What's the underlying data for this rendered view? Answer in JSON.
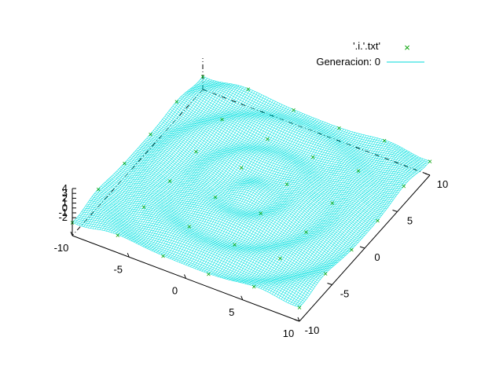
{
  "chart_data": {
    "type": "surface",
    "title": "",
    "xlabel": "",
    "ylabel": "",
    "zlabel": "",
    "x_range": [
      -10,
      10
    ],
    "y_range": [
      -10,
      10
    ],
    "z_range": [
      -2,
      4
    ],
    "x_ticks": [
      "-10",
      "-5",
      "0",
      "5",
      "10"
    ],
    "y_ticks": [
      "-10",
      "-5",
      "0",
      "5",
      "10"
    ],
    "z_ticks": [
      "4",
      "3",
      "2",
      "1",
      "0",
      "-1",
      "-2"
    ],
    "surface_function": "concentric ripples: z ≈ 0.3·cos(1.6·r), r = sqrt(x²+y²), amplitude ≈ 0.3 over z ∈ [-2, 4]",
    "mesh_color": "#00e0e0",
    "points_color": "#00a000",
    "legend": {
      "placement": "top-right",
      "entries": [
        {
          "label": "'.i.'.txt'",
          "marker": "×",
          "color": "#00a000"
        },
        {
          "label": "Generacion: 0",
          "marker": "line",
          "color": "#00d8d8"
        }
      ]
    }
  }
}
